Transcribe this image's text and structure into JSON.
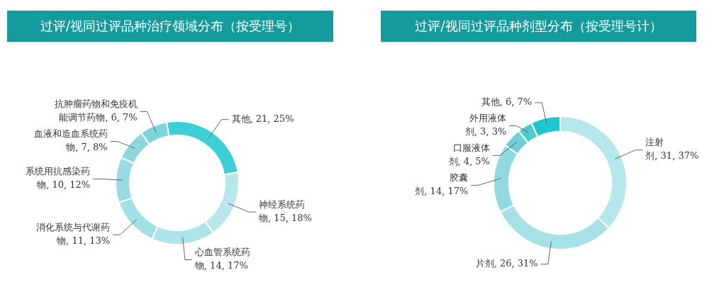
{
  "chart_data": [
    {
      "type": "donut",
      "title": "过评/视同过评品种治疗领域分布（按受理号）",
      "categories": [
        "其他",
        "神经系统药物",
        "心血管系统药物",
        "消化系统与代谢药物",
        "系统用抗感染药物",
        "血液和造血系统药物",
        "抗肿瘤药物和免疫机能调节药物"
      ],
      "values": [
        21,
        15,
        14,
        11,
        10,
        7,
        6
      ],
      "value_labels": [
        "21, 25%",
        "15, 18%",
        "14, 17%",
        "11, 13%",
        "10, 12%",
        "7, 8%",
        "6, 7%"
      ],
      "colors": [
        "#3ccfd8",
        "#b9e8ec",
        "#ade4e9",
        "#a2e0e6",
        "#97dce2",
        "#8bd7de",
        "#7fd3db"
      ]
    },
    {
      "type": "donut",
      "title": "过评/视同过评品种剂型分布（按受理号计）",
      "categories": [
        "注射剂",
        "片剂",
        "胶囊剂",
        "口服液体剂",
        "外用液体剂",
        "其他"
      ],
      "values": [
        31,
        26,
        14,
        4,
        3,
        6
      ],
      "value_labels": [
        "31, 37%",
        "26, 31%",
        "14, 17%",
        "4, 5%",
        "3, 3%",
        "6, 7%"
      ],
      "colors": [
        "#b5e7eb",
        "#a6e1e6",
        "#8fd9df",
        "#6fcfd6",
        "#4ccad2",
        "#1fc5cf"
      ]
    }
  ]
}
